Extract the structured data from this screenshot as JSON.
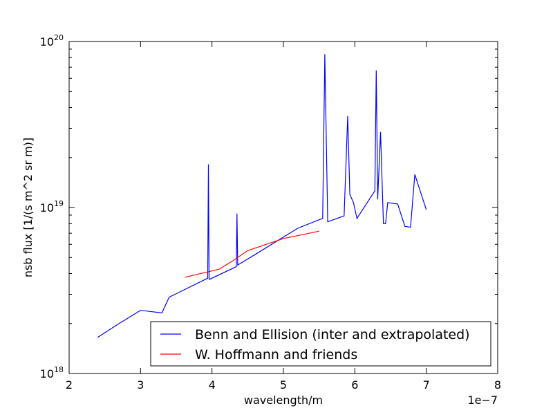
{
  "chart_data": {
    "type": "line",
    "title": "",
    "xlabel": "wavelength/m",
    "ylabel": "nsb flux [1/(s m^2 sr m)]",
    "x_offset_label": "1e−7",
    "x_scale_factor": 1e-07,
    "xlim": [
      2e-07,
      8e-07
    ],
    "ylim": [
      1e+18,
      1e+20
    ],
    "yscale": "log",
    "grid": false,
    "legend_position": "lower right",
    "x_ticks": [
      2e-07,
      3e-07,
      4e-07,
      5e-07,
      6e-07,
      7e-07,
      8e-07
    ],
    "x_tick_labels": [
      "2",
      "3",
      "4",
      "5",
      "6",
      "7",
      "8"
    ],
    "y_ticks": [
      {
        "value": 1e+18,
        "base": "10",
        "exp": "18"
      },
      {
        "value": 1e+19,
        "base": "10",
        "exp": "19"
      },
      {
        "value": 1e+20,
        "base": "10",
        "exp": "20"
      }
    ],
    "series": [
      {
        "name": "Benn and Ellision (inter and extrapolated)",
        "color": "#0000ff",
        "x": [
          2.4e-07,
          2.7e-07,
          3e-07,
          3.3e-07,
          3.4e-07,
          3.94e-07,
          3.95e-07,
          3.96e-07,
          3.97e-07,
          4.34e-07,
          4.35e-07,
          4.36e-07,
          4.6e-07,
          5.2e-07,
          5.55e-07,
          5.58e-07,
          5.62e-07,
          5.85e-07,
          5.9e-07,
          5.93e-07,
          5.98e-07,
          6.03e-07,
          6.28e-07,
          6.3e-07,
          6.32e-07,
          6.36e-07,
          6.4e-07,
          6.43e-07,
          6.46e-07,
          6.6e-07,
          6.7e-07,
          6.78e-07,
          6.84e-07,
          7e-07
        ],
        "y": [
          1.65e+18,
          2e+18,
          2.4e+18,
          2.32e+18,
          2.88e+18,
          3.75e+18,
          1.82e+19,
          3.7e+18,
          3.7e+18,
          4.4e+18,
          9.2e+18,
          4.5e+18,
          5.2e+18,
          7.5e+18,
          8.6e+18,
          8.4e+19,
          8.2e+18,
          8.9e+18,
          3.55e+19,
          1.2e+19,
          1.07e+19,
          8.6e+18,
          1.26e+19,
          6.7e+19,
          1.12e+19,
          2.85e+19,
          8e+18,
          8e+18,
          1.07e+19,
          1.05e+19,
          7.7e+18,
          7.6e+18,
          1.58e+19,
          9.7e+18
        ]
      },
      {
        "name": "W. Hoffmann and friends",
        "color": "#ff0000",
        "x": [
          3.62e-07,
          4.1e-07,
          4.3e-07,
          4.5e-07,
          5e-07,
          5.5e-07
        ],
        "y": [
          3.8e+18,
          4.25e+18,
          4.8e+18,
          5.5e+18,
          6.5e+18,
          7.2e+18
        ]
      }
    ]
  }
}
